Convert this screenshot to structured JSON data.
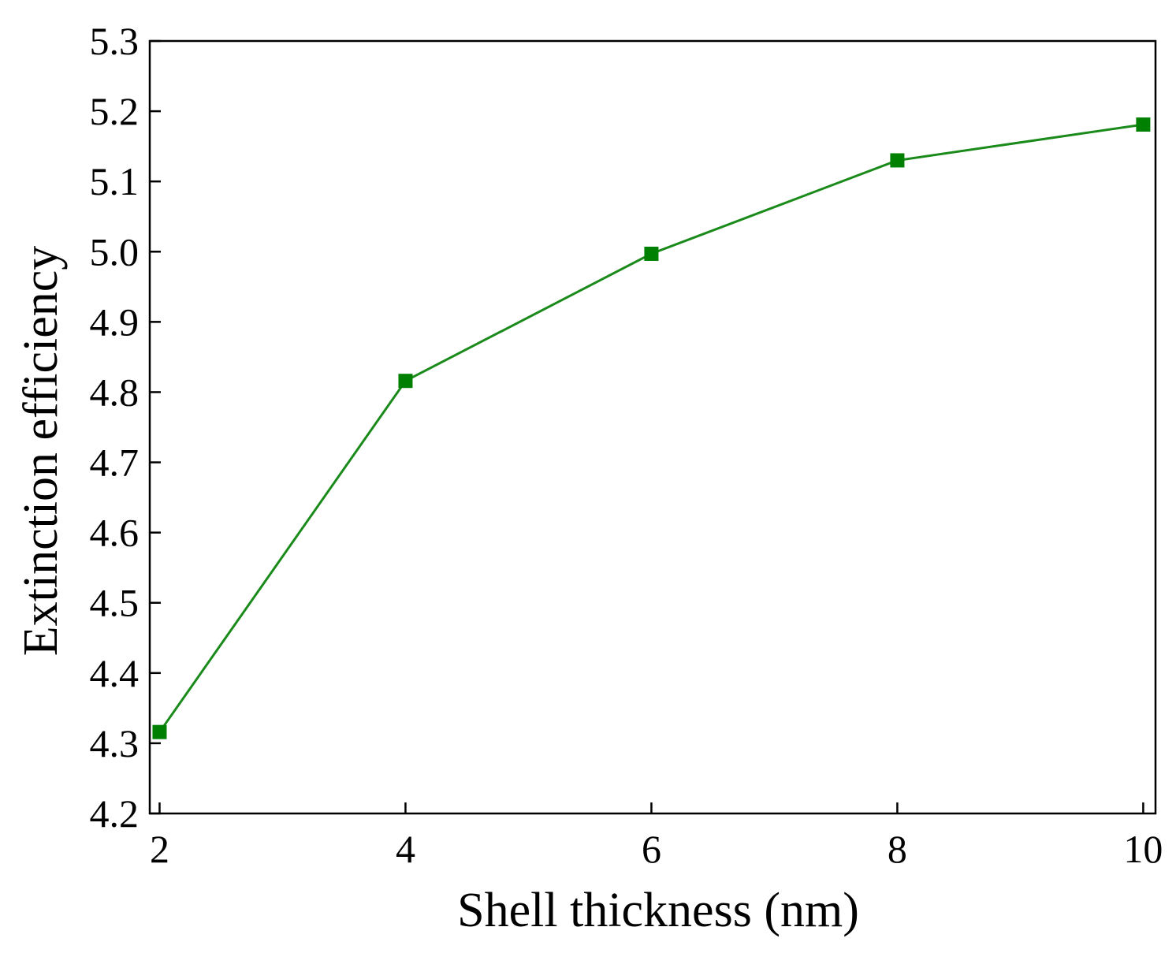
{
  "chart_data": {
    "type": "line",
    "title": "",
    "xlabel": "Shell thickness (nm)",
    "ylabel": "Extinction efficiency",
    "x": [
      2,
      4,
      6,
      8,
      10
    ],
    "series": [
      {
        "values": [
          4.316,
          4.816,
          4.997,
          5.13,
          5.181
        ],
        "color": "#1a8a1a",
        "marker": "square"
      }
    ],
    "xlim": [
      1.92,
      10.1
    ],
    "ylim": [
      4.2,
      5.3
    ],
    "xticks": [
      "2",
      "4",
      "6",
      "8",
      "10"
    ],
    "yticks": [
      "4.2",
      "4.3",
      "4.4",
      "4.5",
      "4.6",
      "4.7",
      "4.8",
      "4.9",
      "5.0",
      "5.1",
      "5.2",
      "5.3"
    ],
    "grid": false,
    "legend": "none",
    "marker_color": "#008000"
  }
}
